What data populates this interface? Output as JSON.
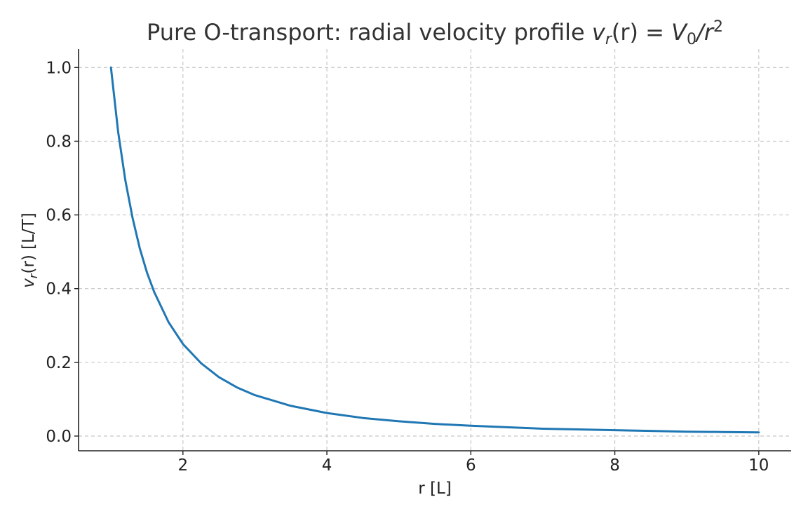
{
  "chart_data": {
    "type": "line",
    "title": "Pure O-transport: radial velocity profile",
    "title_math": {
      "lhs_var": "v",
      "lhs_sub": "r",
      "lhs_arg": "(r)",
      "eq": " = ",
      "rhs_var": "V",
      "rhs_sub": "0",
      "rhs_div": "/r",
      "rhs_sup": "2"
    },
    "xlabel": "r [L]",
    "ylabel": {
      "var": "v",
      "sub": "r",
      "arg": "(r)",
      "unit": " [L/T]"
    },
    "xlim": [
      0.55,
      10.45
    ],
    "ylim": [
      -0.04,
      1.05
    ],
    "x_ticks": [
      2,
      4,
      6,
      8,
      10
    ],
    "y_ticks": [
      0.0,
      0.2,
      0.4,
      0.6,
      0.8,
      1.0
    ],
    "x_tick_labels": [
      "2",
      "4",
      "6",
      "8",
      "10"
    ],
    "y_tick_labels": [
      "0.0",
      "0.2",
      "0.4",
      "0.6",
      "0.8",
      "1.0"
    ],
    "grid": true,
    "series": [
      {
        "color": "#1f77b4",
        "x": [
          1.0,
          1.1,
          1.2,
          1.3,
          1.4,
          1.5,
          1.6,
          1.8,
          2.0,
          2.25,
          2.5,
          2.75,
          3.0,
          3.5,
          4.0,
          4.5,
          5.0,
          5.5,
          6.0,
          6.5,
          7.0,
          7.5,
          8.0,
          8.5,
          9.0,
          9.5,
          10.0
        ],
        "y": [
          1.0,
          0.826,
          0.694,
          0.592,
          0.51,
          0.444,
          0.391,
          0.309,
          0.25,
          0.198,
          0.16,
          0.132,
          0.111,
          0.082,
          0.0625,
          0.049,
          0.04,
          0.033,
          0.028,
          0.024,
          0.02,
          0.018,
          0.016,
          0.014,
          0.012,
          0.011,
          0.01
        ]
      }
    ]
  }
}
